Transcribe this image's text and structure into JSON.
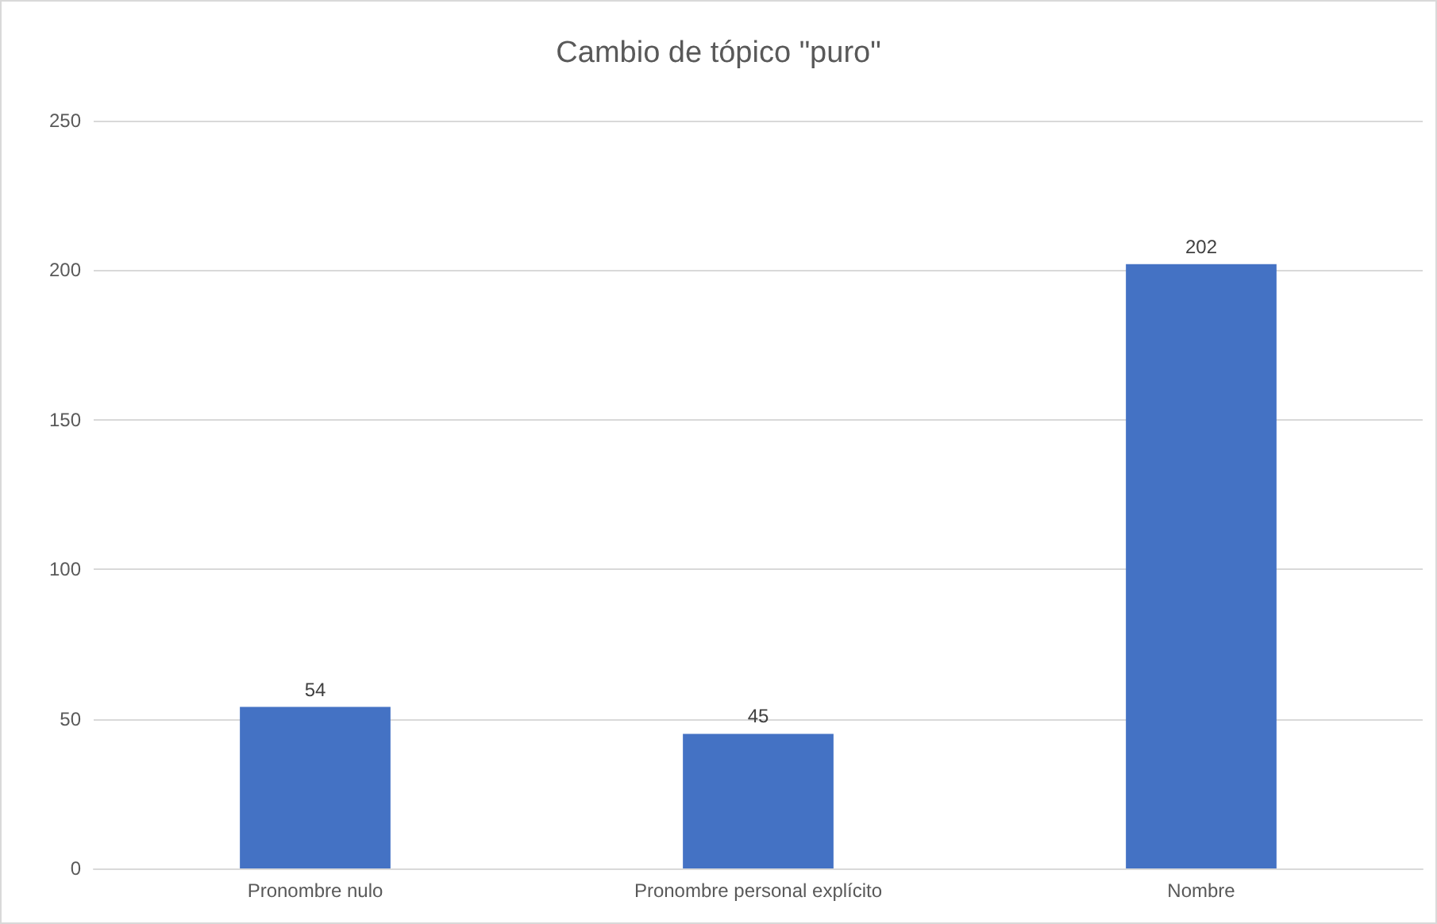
{
  "chart_data": {
    "type": "bar",
    "title": "Cambio de tópico \"puro\"",
    "categories": [
      "Pronombre nulo",
      "Pronombre personal explícito",
      "Nombre"
    ],
    "values": [
      54,
      45,
      202
    ],
    "color": "#4472c4",
    "ylim": [
      0,
      250
    ],
    "yticks": [
      0,
      50,
      100,
      150,
      200,
      250
    ],
    "grid": "y",
    "data_labels": true
  }
}
